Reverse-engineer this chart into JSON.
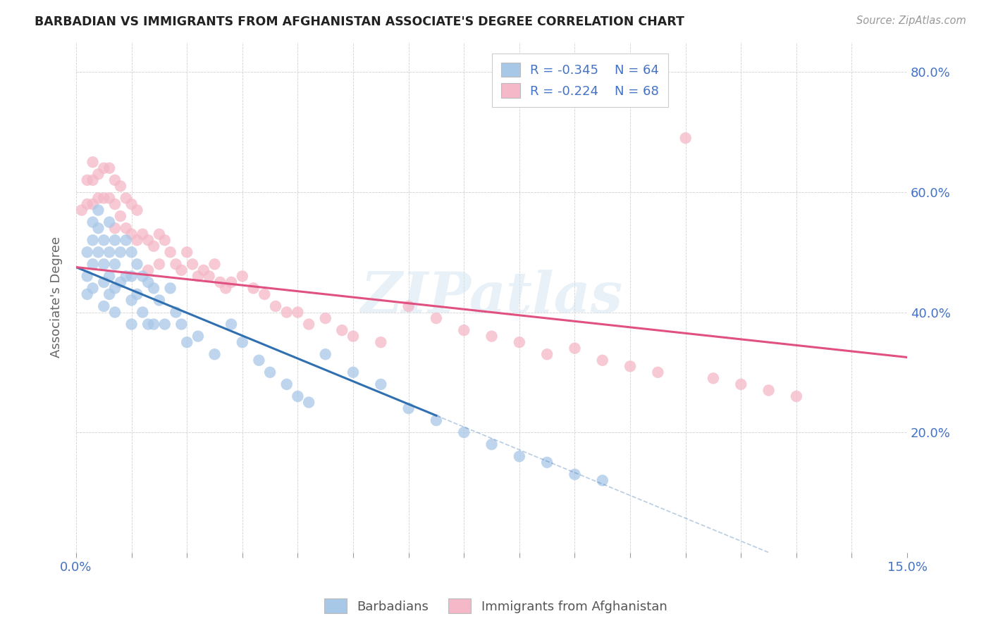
{
  "title": "BARBADIAN VS IMMIGRANTS FROM AFGHANISTAN ASSOCIATE'S DEGREE CORRELATION CHART",
  "source": "Source: ZipAtlas.com",
  "ylabel": "Associate's Degree",
  "xlim": [
    0.0,
    0.15
  ],
  "ylim": [
    0.0,
    0.85
  ],
  "watermark": "ZIPatlas",
  "blue_color": "#a8c8e8",
  "pink_color": "#f4b8c8",
  "blue_line_color": "#3070b0",
  "pink_line_color": "#e05080",
  "blue_intercept": 0.475,
  "blue_slope": -3.8,
  "pink_intercept": 0.475,
  "pink_slope": -1.0,
  "barbadians_x": [
    0.002,
    0.002,
    0.002,
    0.003,
    0.003,
    0.003,
    0.003,
    0.004,
    0.004,
    0.004,
    0.005,
    0.005,
    0.005,
    0.005,
    0.006,
    0.006,
    0.006,
    0.006,
    0.007,
    0.007,
    0.007,
    0.007,
    0.008,
    0.008,
    0.009,
    0.009,
    0.01,
    0.01,
    0.01,
    0.01,
    0.011,
    0.011,
    0.012,
    0.012,
    0.013,
    0.013,
    0.014,
    0.014,
    0.015,
    0.016,
    0.017,
    0.018,
    0.019,
    0.02,
    0.022,
    0.025,
    0.028,
    0.03,
    0.033,
    0.035,
    0.038,
    0.04,
    0.042,
    0.045,
    0.05,
    0.055,
    0.06,
    0.065,
    0.07,
    0.075,
    0.08,
    0.085,
    0.09,
    0.095
  ],
  "barbadians_y": [
    0.5,
    0.46,
    0.43,
    0.55,
    0.52,
    0.48,
    0.44,
    0.57,
    0.54,
    0.5,
    0.52,
    0.48,
    0.45,
    0.41,
    0.55,
    0.5,
    0.46,
    0.43,
    0.52,
    0.48,
    0.44,
    0.4,
    0.5,
    0.45,
    0.52,
    0.46,
    0.5,
    0.46,
    0.42,
    0.38,
    0.48,
    0.43,
    0.46,
    0.4,
    0.45,
    0.38,
    0.44,
    0.38,
    0.42,
    0.38,
    0.44,
    0.4,
    0.38,
    0.35,
    0.36,
    0.33,
    0.38,
    0.35,
    0.32,
    0.3,
    0.28,
    0.26,
    0.25,
    0.33,
    0.3,
    0.28,
    0.24,
    0.22,
    0.2,
    0.18,
    0.16,
    0.15,
    0.13,
    0.12
  ],
  "afghan_x": [
    0.001,
    0.002,
    0.002,
    0.003,
    0.003,
    0.003,
    0.004,
    0.004,
    0.005,
    0.005,
    0.006,
    0.006,
    0.007,
    0.007,
    0.007,
    0.008,
    0.008,
    0.009,
    0.009,
    0.01,
    0.01,
    0.011,
    0.011,
    0.012,
    0.013,
    0.013,
    0.014,
    0.015,
    0.015,
    0.016,
    0.017,
    0.018,
    0.019,
    0.02,
    0.021,
    0.022,
    0.023,
    0.024,
    0.025,
    0.026,
    0.027,
    0.028,
    0.03,
    0.032,
    0.034,
    0.036,
    0.038,
    0.04,
    0.042,
    0.045,
    0.048,
    0.05,
    0.055,
    0.06,
    0.065,
    0.07,
    0.075,
    0.08,
    0.085,
    0.09,
    0.095,
    0.1,
    0.105,
    0.11,
    0.115,
    0.12,
    0.125,
    0.13
  ],
  "afghan_y": [
    0.57,
    0.62,
    0.58,
    0.65,
    0.62,
    0.58,
    0.63,
    0.59,
    0.64,
    0.59,
    0.64,
    0.59,
    0.62,
    0.58,
    0.54,
    0.61,
    0.56,
    0.59,
    0.54,
    0.58,
    0.53,
    0.57,
    0.52,
    0.53,
    0.52,
    0.47,
    0.51,
    0.53,
    0.48,
    0.52,
    0.5,
    0.48,
    0.47,
    0.5,
    0.48,
    0.46,
    0.47,
    0.46,
    0.48,
    0.45,
    0.44,
    0.45,
    0.46,
    0.44,
    0.43,
    0.41,
    0.4,
    0.4,
    0.38,
    0.39,
    0.37,
    0.36,
    0.35,
    0.41,
    0.39,
    0.37,
    0.36,
    0.35,
    0.33,
    0.34,
    0.32,
    0.31,
    0.3,
    0.69,
    0.29,
    0.28,
    0.27,
    0.26
  ]
}
